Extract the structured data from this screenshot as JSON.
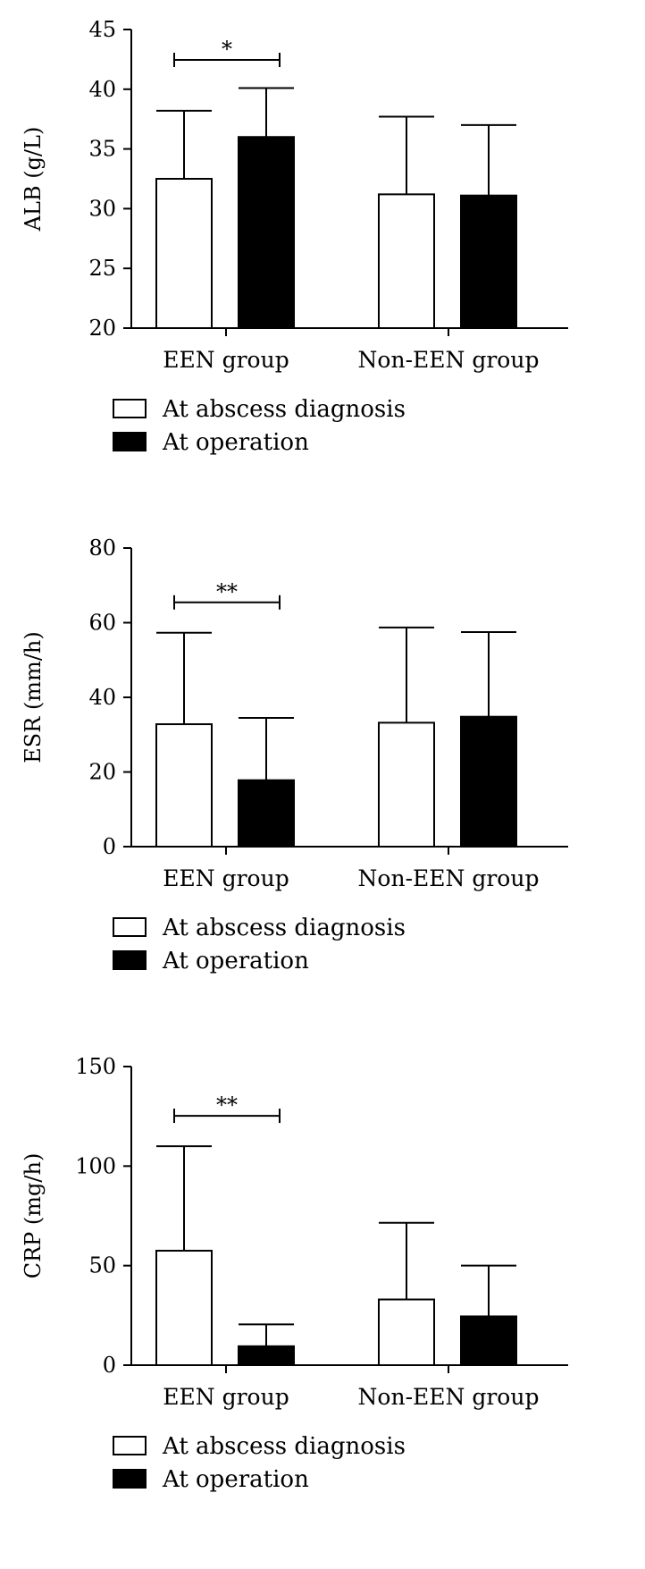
{
  "chart_data": [
    {
      "type": "bar",
      "ylabel": "ALB (g/L)",
      "categories": [
        "EEN group",
        "Non-EEN group"
      ],
      "ylim": [
        20,
        45
      ],
      "yticks": [
        20,
        25,
        30,
        35,
        40,
        45
      ],
      "series": [
        {
          "name": "At abscess diagnosis",
          "color": "#ffffff",
          "values": [
            32.5,
            31.2
          ],
          "errors": [
            5.7,
            6.5
          ]
        },
        {
          "name": "At operation",
          "color": "#000000",
          "values": [
            36.0,
            31.1
          ],
          "errors": [
            4.1,
            5.9
          ]
        }
      ],
      "significance": [
        {
          "category": "EEN group",
          "label": "*"
        }
      ],
      "legend": {
        "position": "bottom-left",
        "items": [
          "At abscess diagnosis",
          "At operation"
        ]
      }
    },
    {
      "type": "bar",
      "ylabel": "ESR (mm/h)",
      "categories": [
        "EEN group",
        "Non-EEN group"
      ],
      "ylim": [
        0,
        80
      ],
      "yticks": [
        0,
        20,
        40,
        60,
        80
      ],
      "series": [
        {
          "name": "At abscess diagnosis",
          "color": "#ffffff",
          "values": [
            32.8,
            33.2
          ],
          "errors": [
            24.5,
            25.5
          ]
        },
        {
          "name": "At operation",
          "color": "#000000",
          "values": [
            17.8,
            34.8
          ],
          "errors": [
            16.7,
            22.7
          ]
        }
      ],
      "significance": [
        {
          "category": "EEN group",
          "label": "**"
        }
      ],
      "legend": {
        "position": "bottom-left",
        "items": [
          "At abscess diagnosis",
          "At operation"
        ]
      }
    },
    {
      "type": "bar",
      "ylabel": "CRP (mg/h)",
      "categories": [
        "EEN group",
        "Non-EEN group"
      ],
      "ylim": [
        0,
        150
      ],
      "yticks": [
        0,
        50,
        100,
        150
      ],
      "series": [
        {
          "name": "At abscess diagnosis",
          "color": "#ffffff",
          "values": [
            57.5,
            33.0
          ],
          "errors": [
            52.5,
            38.5
          ]
        },
        {
          "name": "At operation",
          "color": "#000000",
          "values": [
            9.5,
            24.5
          ],
          "errors": [
            11.0,
            25.5
          ]
        }
      ],
      "significance": [
        {
          "category": "EEN group",
          "label": "**"
        }
      ],
      "legend": {
        "position": "bottom-left",
        "items": [
          "At abscess diagnosis",
          "At operation"
        ]
      }
    }
  ]
}
